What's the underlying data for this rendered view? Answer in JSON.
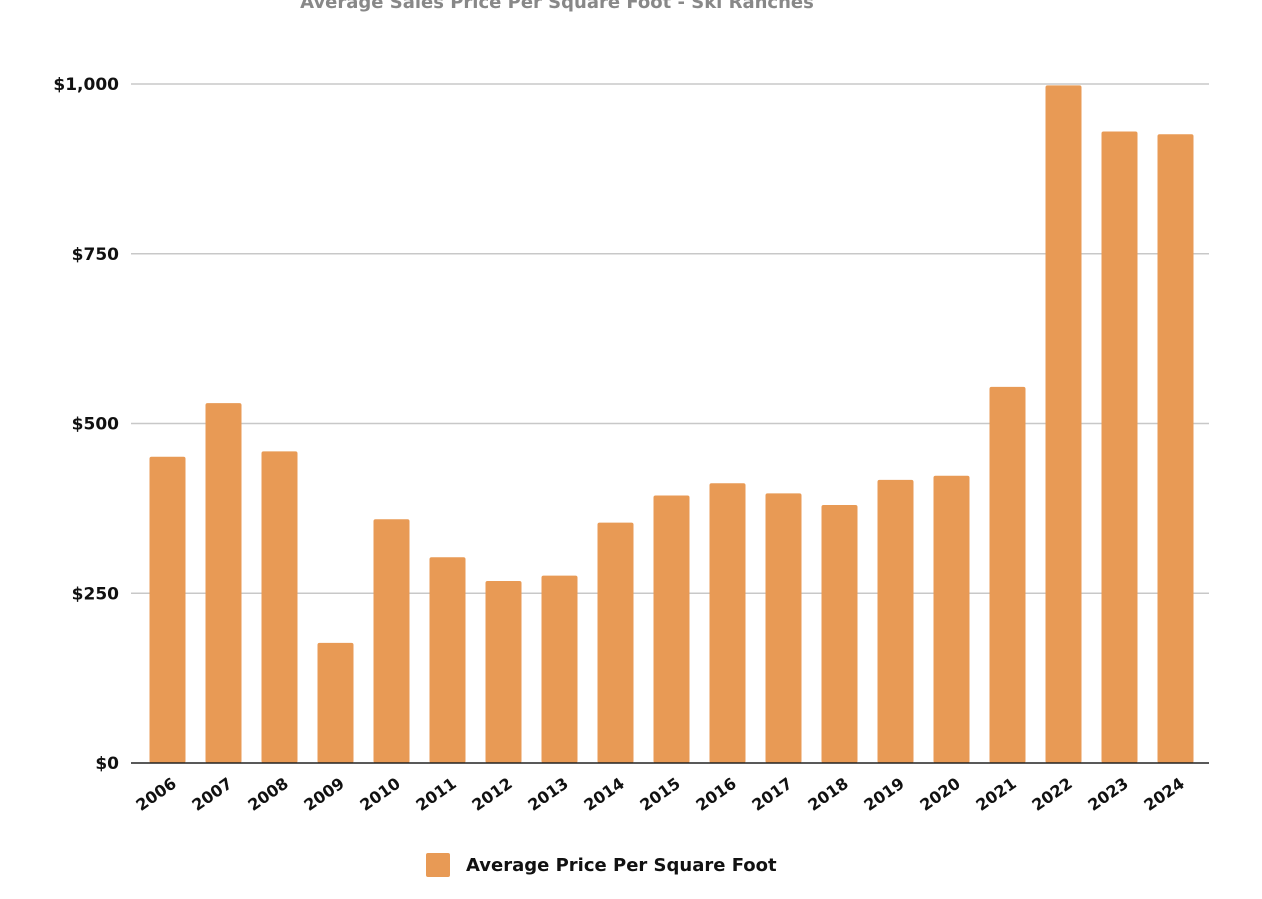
{
  "chart_data": {
    "type": "bar",
    "title": "Average Sales Price Per Square Foot - Ski Ranches",
    "xlabel": "",
    "ylabel": "",
    "categories": [
      "2006",
      "2007",
      "2008",
      "2009",
      "2010",
      "2011",
      "2012",
      "2013",
      "2014",
      "2015",
      "2016",
      "2017",
      "2018",
      "2019",
      "2020",
      "2021",
      "2022",
      "2023",
      "2024"
    ],
    "series": [
      {
        "name": "Average Price Per Square Foot",
        "values": [
          451,
          530,
          459,
          177,
          359,
          303,
          268,
          276,
          354,
          394,
          412,
          397,
          380,
          417,
          423,
          554,
          998,
          930,
          926
        ]
      }
    ],
    "ylim": [
      0,
      1000
    ],
    "yticks": [
      0,
      250,
      500,
      750,
      1000
    ],
    "ytick_labels": [
      "$0",
      "$250",
      "$500",
      "$750",
      "$1,000"
    ],
    "grid": true,
    "legend_position": "bottom",
    "bar_color": "#E89A55",
    "gridline_color": "#C8C8C8",
    "title_color": "#888888"
  }
}
